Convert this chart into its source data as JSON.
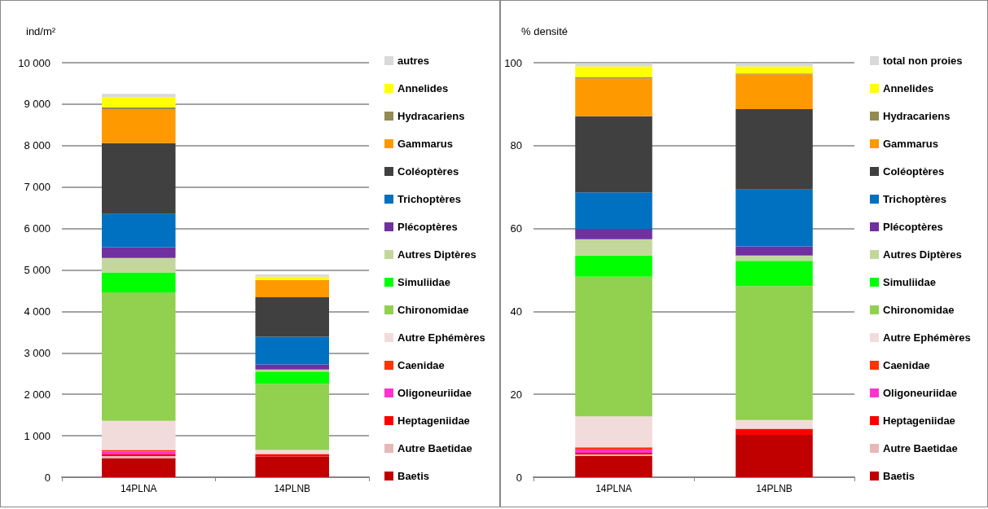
{
  "chart_data": [
    {
      "type": "bar",
      "ylabel": "ind/m²",
      "categories": [
        "14PLNA",
        "14PLNB"
      ],
      "stacked": true,
      "ylim": [
        0,
        10000
      ],
      "yticks": [
        0,
        {
          "value": 1000,
          "label": "1 000"
        },
        {
          "value": 2000,
          "label": "2 000"
        },
        {
          "value": 3000,
          "label": "3 000"
        },
        {
          "value": 4000,
          "label": "4 000"
        },
        {
          "value": 5000,
          "label": "5 000"
        },
        {
          "value": 6000,
          "label": "6 000"
        },
        {
          "value": 7000,
          "label": "7 000"
        },
        {
          "value": 8000,
          "label": "8 000"
        },
        {
          "value": 9000,
          "label": "9 000"
        },
        {
          "value": 10000,
          "label": "10 000"
        }
      ],
      "grid": "y",
      "legend": "right",
      "series": [
        {
          "name": "Baetis",
          "color": "#c00000",
          "values": [
            460,
            500
          ]
        },
        {
          "name": "Autre Baetidae",
          "color": "#e6b9b8",
          "values": [
            50,
            null
          ]
        },
        {
          "name": "Heptageniidae",
          "color": "#ff0000",
          "values": [
            40,
            60
          ]
        },
        {
          "name": "Oligoneuriidae",
          "color": "#ff33cc",
          "values": [
            70,
            0
          ]
        },
        {
          "name": "Caenidae",
          "color": "#ff3300",
          "values": [
            40,
            0
          ]
        },
        {
          "name": "Autre Ephémères",
          "color": "#f2dcdb",
          "values": [
            700,
            100
          ]
        },
        {
          "name": "Chironomidae",
          "color": "#92d050",
          "values": [
            3100,
            1590
          ]
        },
        {
          "name": "Simuliidae",
          "color": "#00ff00",
          "values": [
            480,
            300
          ]
        },
        {
          "name": "Autres Diptères",
          "color": "#c4d79b",
          "values": [
            350,
            50
          ]
        },
        {
          "name": "Plécoptères",
          "color": "#7030a0",
          "values": [
            260,
            120
          ]
        },
        {
          "name": "Trichoptères",
          "color": "#0070c0",
          "values": [
            800,
            670
          ]
        },
        {
          "name": "Coléoptères",
          "color": "#404040",
          "values": [
            1710,
            950
          ]
        },
        {
          "name": "Gammarus",
          "color": "#ff9900",
          "values": [
            820,
            420
          ]
        },
        {
          "name": "Hydracariens",
          "color": "#948a54",
          "values": [
            40,
            null
          ]
        },
        {
          "name": "Annelides",
          "color": "#ffff00",
          "values": [
            250,
            80
          ]
        },
        {
          "name": "autres",
          "color": "#d9d9d9",
          "values": [
            80,
            50
          ]
        }
      ]
    },
    {
      "type": "bar",
      "ylabel": "% densité",
      "categories": [
        "14PLNA",
        "14PLNB"
      ],
      "stacked": true,
      "ylim": [
        0,
        100
      ],
      "yticks": [
        0,
        20,
        40,
        60,
        80,
        100
      ],
      "grid": "y",
      "legend": "right",
      "series": [
        {
          "name": "Baetis",
          "color": "#c00000",
          "values": [
            5.1,
            10.2
          ]
        },
        {
          "name": "Autre Baetidae",
          "color": "#e6b9b8",
          "values": [
            0.4,
            null
          ]
        },
        {
          "name": "Heptageniidae",
          "color": "#ff0000",
          "values": [
            0.4,
            1.5
          ]
        },
        {
          "name": "Oligoneuriidae",
          "color": "#ff33cc",
          "values": [
            0.8,
            0
          ]
        },
        {
          "name": "Caenidae",
          "color": "#ff3300",
          "values": [
            0.5,
            0
          ]
        },
        {
          "name": "Autre Ephémères",
          "color": "#f2dcdb",
          "values": [
            7.5,
            2.1
          ]
        },
        {
          "name": "Chironomidae",
          "color": "#92d050",
          "values": [
            33.7,
            32.3
          ]
        },
        {
          "name": "Simuliidae",
          "color": "#00ff00",
          "values": [
            5.1,
            6.1
          ]
        },
        {
          "name": "Autres Diptères",
          "color": "#c4d79b",
          "values": [
            3.9,
            1.3
          ]
        },
        {
          "name": "Plécoptères",
          "color": "#7030a0",
          "values": [
            2.5,
            2.2
          ]
        },
        {
          "name": "Trichoptères",
          "color": "#0070c0",
          "values": [
            8.8,
            13.7
          ]
        },
        {
          "name": "Coléoptères",
          "color": "#404040",
          "values": [
            18.4,
            19.4
          ]
        },
        {
          "name": "Gammarus",
          "color": "#ff9900",
          "values": [
            9.1,
            8.4
          ]
        },
        {
          "name": "Hydracariens",
          "color": "#948a54",
          "values": [
            0.3,
            0.2
          ]
        },
        {
          "name": "Annelides",
          "color": "#ffff00",
          "values": [
            2.6,
            1.7
          ]
        },
        {
          "name": "total non proies",
          "color": "#d9d9d9",
          "values": [
            0.8,
            0.8
          ]
        }
      ]
    }
  ]
}
